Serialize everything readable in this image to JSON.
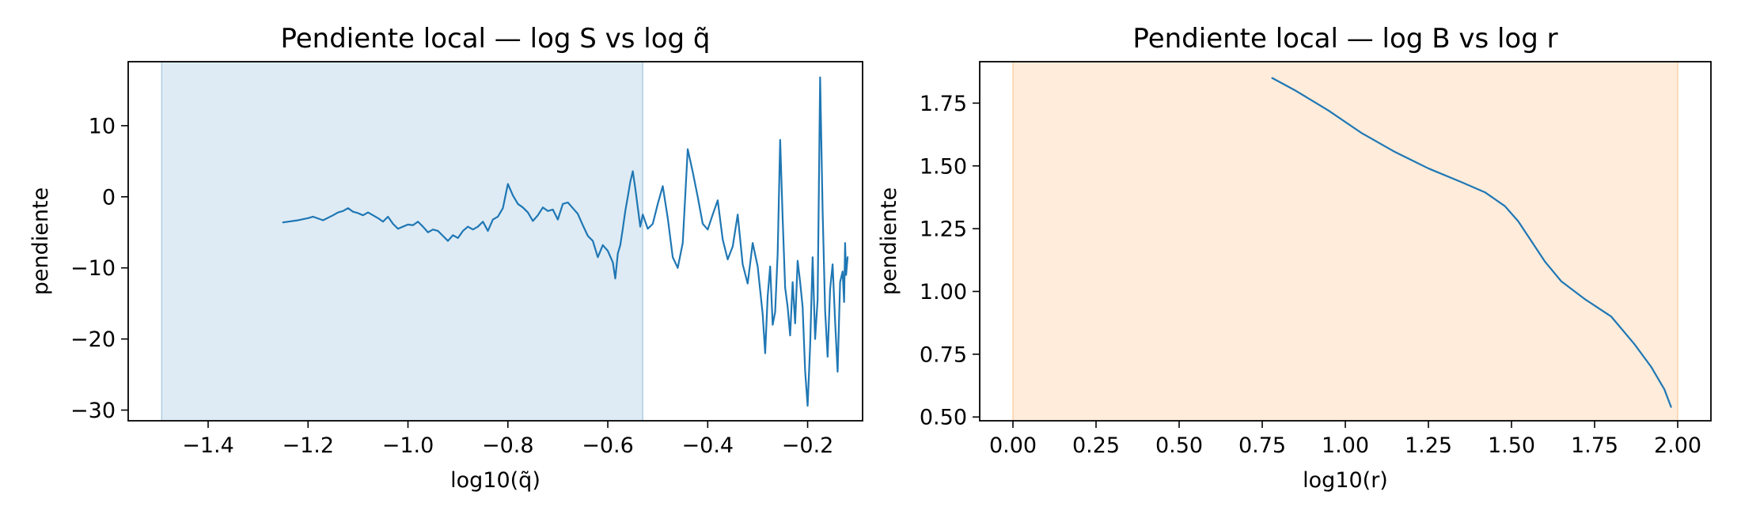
{
  "figure": {
    "background": "#ffffff"
  },
  "chart_data": [
    {
      "type": "line",
      "title": "Pendiente local — log S vs log q̃",
      "xlabel": "log10(q̃)",
      "ylabel": "pendiente",
      "xlim": [
        -1.56,
        -0.09
      ],
      "ylim": [
        -31.5,
        19
      ],
      "xticks": [
        -1.4,
        -1.2,
        -1.0,
        -0.8,
        -0.6,
        -0.4,
        -0.2
      ],
      "xtick_labels": [
        "−1.4",
        "−1.2",
        "−1.0",
        "−0.8",
        "−0.6",
        "−0.4",
        "−0.2"
      ],
      "yticks": [
        10,
        0,
        -10,
        -20,
        -30
      ],
      "ytick_labels": [
        "10",
        "0",
        "−10",
        "−20",
        "−30"
      ],
      "grid": false,
      "shaded_region": {
        "x0": -1.493,
        "x1": -0.53,
        "color": "#1f77b4",
        "opacity": 0.15
      },
      "series": [
        {
          "color": "#1f77b4",
          "x": [
            -1.25,
            -1.22,
            -1.2,
            -1.19,
            -1.17,
            -1.15,
            -1.14,
            -1.13,
            -1.12,
            -1.11,
            -1.1,
            -1.09,
            -1.08,
            -1.06,
            -1.05,
            -1.04,
            -1.03,
            -1.02,
            -1.01,
            -1.0,
            -0.99,
            -0.98,
            -0.97,
            -0.96,
            -0.95,
            -0.94,
            -0.93,
            -0.92,
            -0.91,
            -0.9,
            -0.89,
            -0.88,
            -0.87,
            -0.86,
            -0.85,
            -0.84,
            -0.83,
            -0.82,
            -0.81,
            -0.8,
            -0.79,
            -0.78,
            -0.77,
            -0.76,
            -0.75,
            -0.74,
            -0.73,
            -0.72,
            -0.71,
            -0.7,
            -0.69,
            -0.68,
            -0.67,
            -0.66,
            -0.65,
            -0.64,
            -0.63,
            -0.62,
            -0.61,
            -0.6,
            -0.59,
            -0.585,
            -0.58,
            -0.575,
            -0.57,
            -0.565,
            -0.56,
            -0.555,
            -0.55,
            -0.545,
            -0.54,
            -0.535,
            -0.53,
            -0.52,
            -0.51,
            -0.5,
            -0.49,
            -0.48,
            -0.47,
            -0.46,
            -0.45,
            -0.44,
            -0.43,
            -0.42,
            -0.41,
            -0.4,
            -0.39,
            -0.38,
            -0.37,
            -0.36,
            -0.35,
            -0.34,
            -0.33,
            -0.32,
            -0.31,
            -0.3,
            -0.29,
            -0.285,
            -0.28,
            -0.275,
            -0.27,
            -0.265,
            -0.26,
            -0.255,
            -0.25,
            -0.245,
            -0.24,
            -0.235,
            -0.23,
            -0.225,
            -0.22,
            -0.215,
            -0.21,
            -0.205,
            -0.2,
            -0.195,
            -0.19,
            -0.185,
            -0.18,
            -0.175,
            -0.17,
            -0.165,
            -0.16,
            -0.155,
            -0.15,
            -0.145,
            -0.14,
            -0.135,
            -0.13,
            -0.127,
            -0.125,
            -0.123,
            -0.12
          ],
          "y": [
            -3.6,
            -3.3,
            -3.0,
            -2.8,
            -3.3,
            -2.6,
            -2.2,
            -2.0,
            -1.6,
            -2.1,
            -2.3,
            -2.6,
            -2.2,
            -3.0,
            -3.5,
            -2.8,
            -3.8,
            -4.5,
            -4.2,
            -3.9,
            -4.0,
            -3.5,
            -4.2,
            -5.0,
            -4.6,
            -4.8,
            -5.5,
            -6.2,
            -5.4,
            -5.8,
            -4.8,
            -4.2,
            -4.6,
            -4.2,
            -3.5,
            -4.8,
            -3.2,
            -2.8,
            -1.6,
            1.8,
            0.2,
            -1.0,
            -1.5,
            -2.2,
            -3.4,
            -2.6,
            -1.5,
            -2.0,
            -1.8,
            -3.2,
            -1.0,
            -0.8,
            -1.6,
            -2.4,
            -4.0,
            -5.5,
            -6.2,
            -8.5,
            -6.8,
            -7.6,
            -9.2,
            -11.5,
            -8.0,
            -6.8,
            -4.5,
            -2.0,
            0.0,
            2.1,
            3.6,
            1.2,
            -1.5,
            -4.2,
            -2.5,
            -4.5,
            -3.8,
            -1.0,
            1.5,
            -3.0,
            -8.5,
            -10.0,
            -6.5,
            6.7,
            3.5,
            0.0,
            -3.8,
            -4.6,
            -2.5,
            -0.5,
            -6.0,
            -8.8,
            -7.0,
            -2.5,
            -9.5,
            -12.2,
            -6.5,
            -9.8,
            -16.5,
            -22.0,
            -14.0,
            -9.8,
            -18.0,
            -16.2,
            -8.0,
            8.0,
            -3.0,
            -12.8,
            -15.5,
            -19.5,
            -12.0,
            -17.8,
            -9.0,
            -12.0,
            -15.5,
            -24.5,
            -29.4,
            -21.0,
            -8.5,
            -20.0,
            -14.5,
            16.8,
            -2.0,
            -16.0,
            -22.5,
            -13.0,
            -9.5,
            -17.5,
            -24.6,
            -12.0,
            -10.5,
            -14.8,
            -6.5,
            -11.0,
            -8.5
          ]
        }
      ]
    },
    {
      "type": "line",
      "title": "Pendiente local — log B vs log r",
      "xlabel": "log10(r)",
      "ylabel": "pendiente",
      "xlim": [
        -0.1,
        2.1
      ],
      "ylim": [
        0.485,
        1.915
      ],
      "xticks": [
        0.0,
        0.25,
        0.5,
        0.75,
        1.0,
        1.25,
        1.5,
        1.75,
        2.0
      ],
      "xtick_labels": [
        "0.00",
        "0.25",
        "0.50",
        "0.75",
        "1.00",
        "1.25",
        "1.50",
        "1.75",
        "2.00"
      ],
      "yticks": [
        0.5,
        0.75,
        1.0,
        1.25,
        1.5,
        1.75
      ],
      "ytick_labels": [
        "0.50",
        "0.75",
        "1.00",
        "1.25",
        "1.50",
        "1.75"
      ],
      "grid": false,
      "shaded_region": {
        "x0": 0.0,
        "x1": 2.0,
        "color": "#ff7f0e",
        "opacity": 0.15
      },
      "series": [
        {
          "color": "#1f77b4",
          "x": [
            0.78,
            0.85,
            0.95,
            1.05,
            1.15,
            1.25,
            1.35,
            1.42,
            1.48,
            1.52,
            1.56,
            1.6,
            1.65,
            1.72,
            1.8,
            1.87,
            1.92,
            1.96,
            1.98
          ],
          "y": [
            1.85,
            1.8,
            1.72,
            1.63,
            1.555,
            1.49,
            1.435,
            1.395,
            1.34,
            1.28,
            1.2,
            1.12,
            1.04,
            0.97,
            0.9,
            0.79,
            0.7,
            0.61,
            0.54
          ]
        }
      ]
    }
  ]
}
